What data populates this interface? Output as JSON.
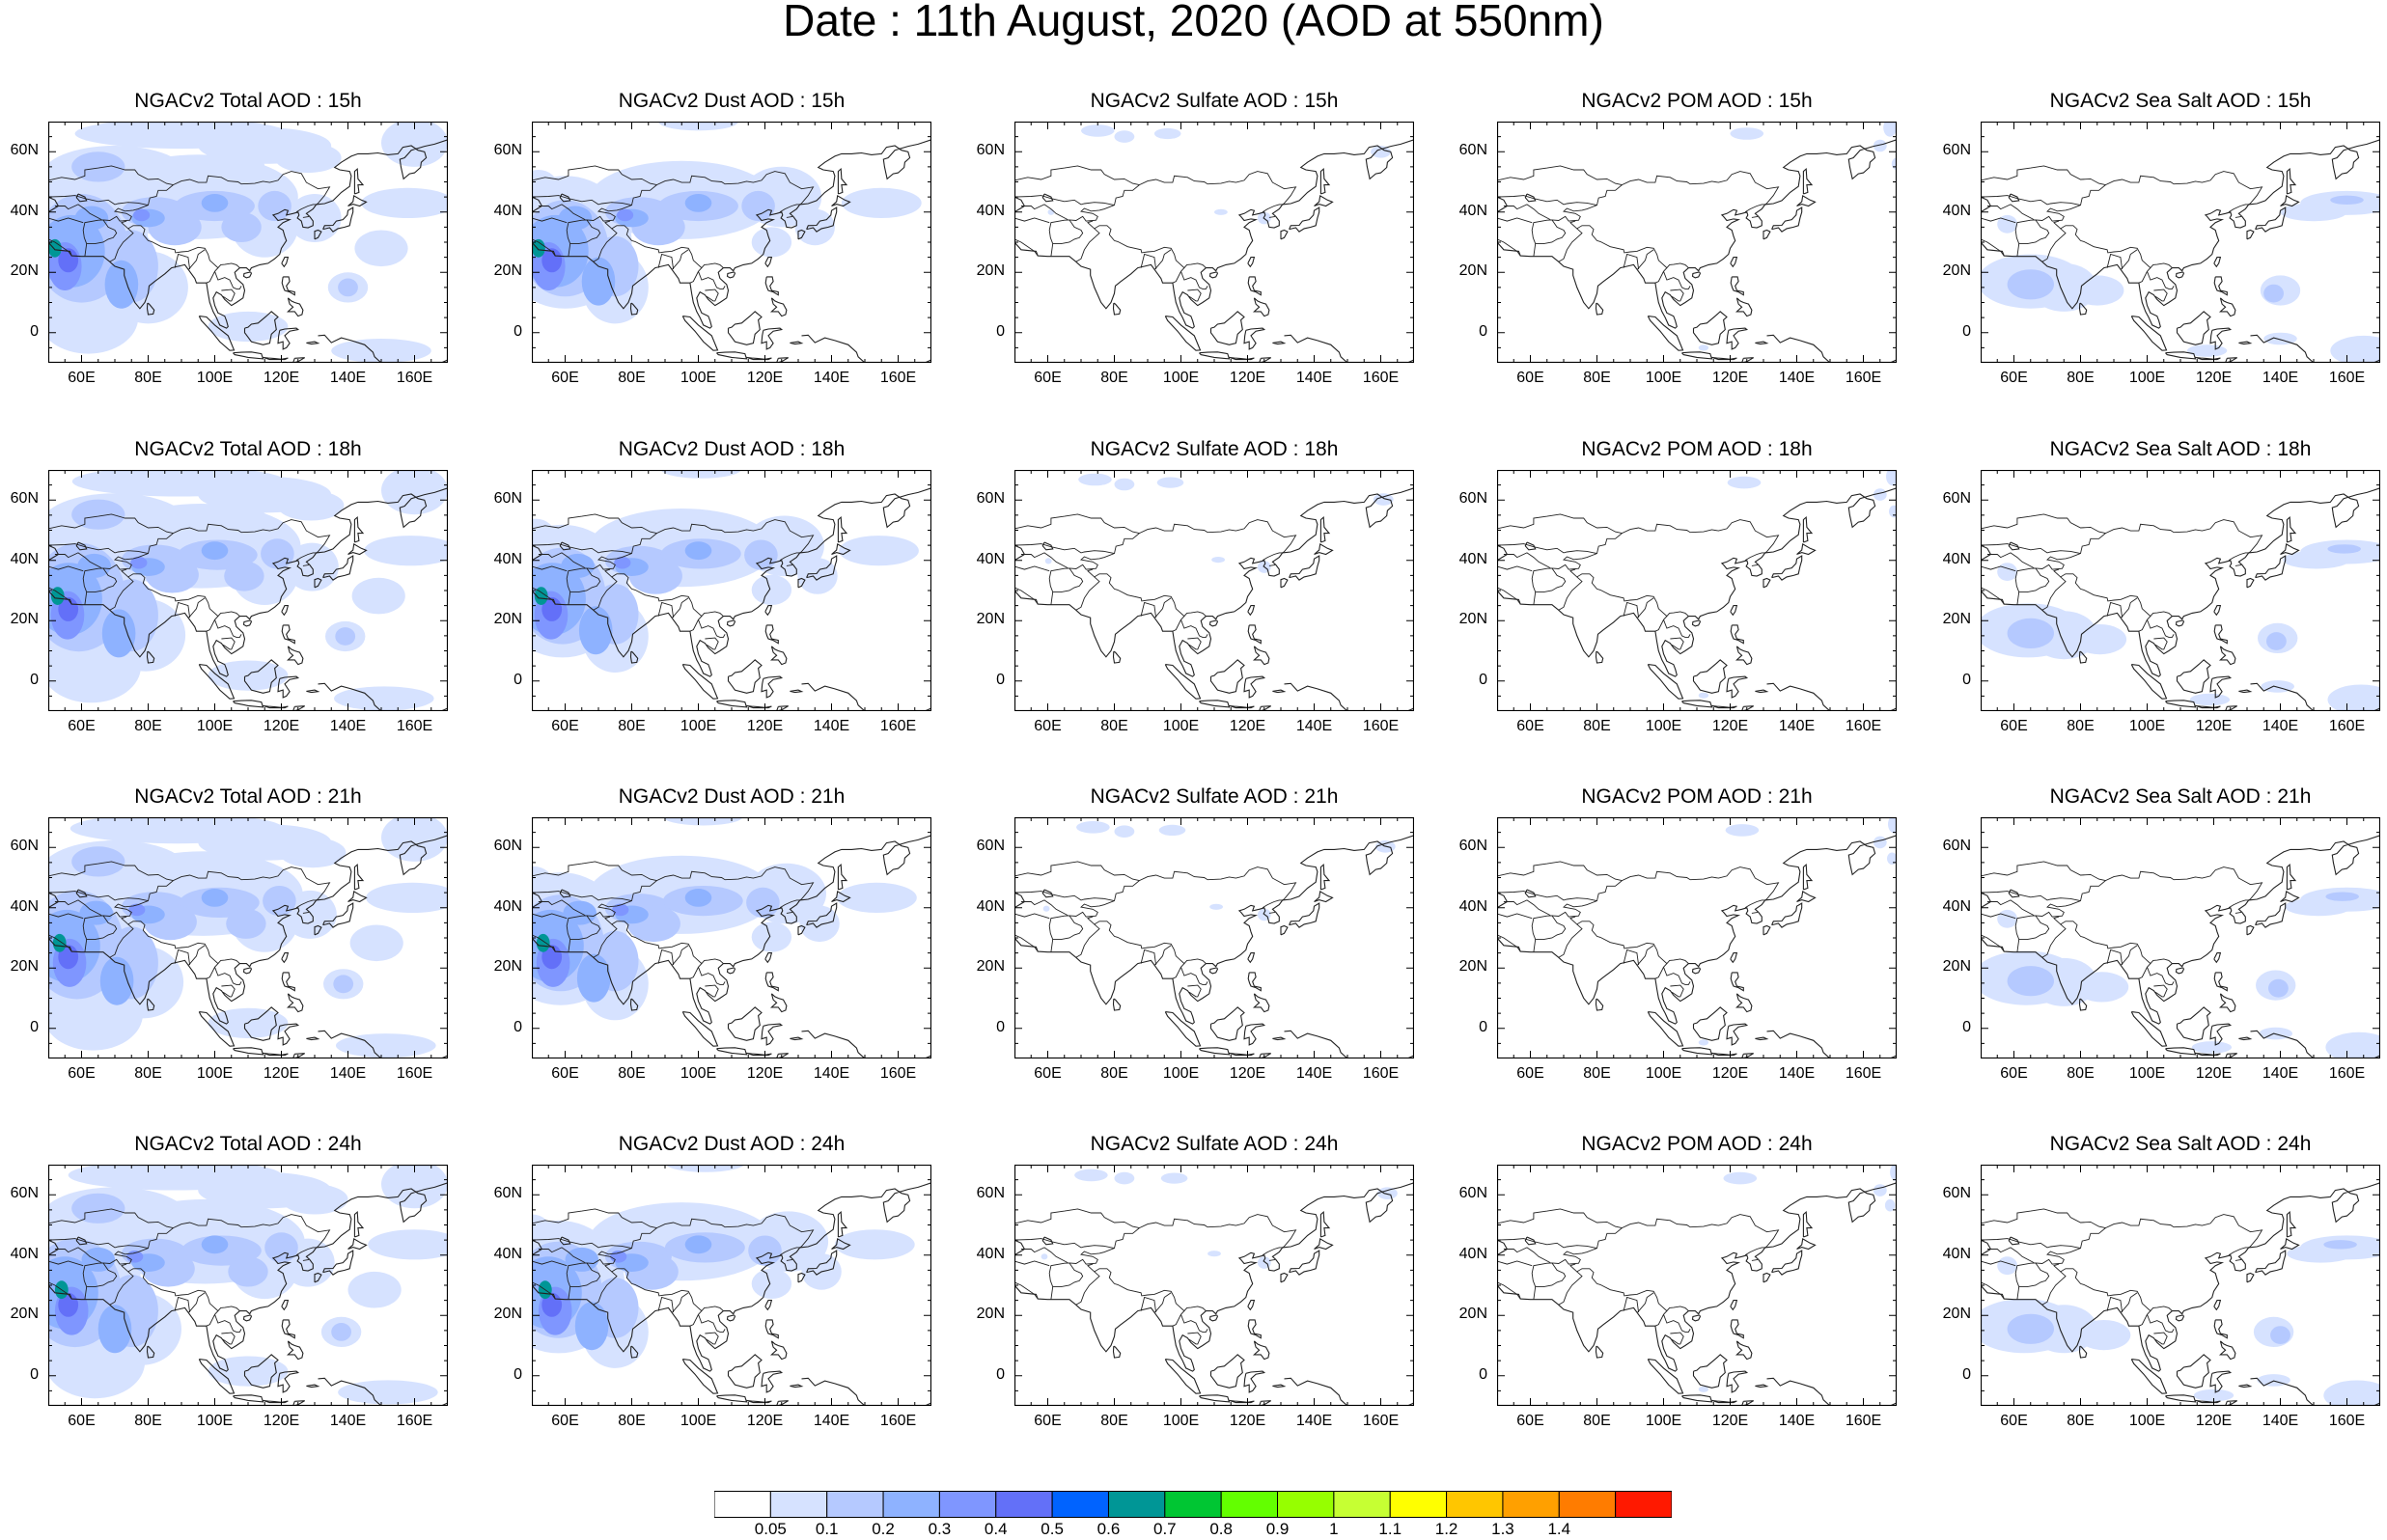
{
  "title": "Date : 11th August, 2020 (AOD at 550nm)",
  "lon_ticks": [
    "60E",
    "80E",
    "100E",
    "120E",
    "140E",
    "160E"
  ],
  "lat_ticks": [
    "60N",
    "40N",
    "20N",
    "0"
  ],
  "panels": [
    [
      "NGACv2 Total AOD : 15h",
      "NGACv2 Dust AOD : 15h",
      "NGACv2 Sulfate AOD : 15h",
      "NGACv2 POM AOD : 15h",
      "NGACv2 Sea Salt AOD : 15h"
    ],
    [
      "NGACv2 Total AOD : 18h",
      "NGACv2 Dust AOD : 18h",
      "NGACv2 Sulfate AOD : 18h",
      "NGACv2 POM AOD : 18h",
      "NGACv2 Sea Salt AOD : 18h"
    ],
    [
      "NGACv2 Total AOD : 21h",
      "NGACv2 Dust AOD : 21h",
      "NGACv2 Sulfate AOD : 21h",
      "NGACv2 POM AOD : 21h",
      "NGACv2 Sea Salt AOD : 21h"
    ],
    [
      "NGACv2 Total AOD : 24h",
      "NGACv2 Dust AOD : 24h",
      "NGACv2 Sulfate AOD : 24h",
      "NGACv2 POM AOD : 24h",
      "NGACv2 Sea Salt  AOD : 24h"
    ]
  ],
  "colorbar": {
    "labels": [
      "0.05",
      "0.1",
      "0.2",
      "0.3",
      "0.4",
      "0.5",
      "0.6",
      "0.7",
      "0.8",
      "0.9",
      "1",
      "1.1",
      "1.2",
      "1.3",
      "1.4"
    ],
    "colors": [
      "#ffffff",
      "#d6e2ff",
      "#b5c9ff",
      "#8eb2ff",
      "#7f96ff",
      "#6370f8",
      "#0063ff",
      "#009696",
      "#00c633",
      "#63ff00",
      "#96ff00",
      "#c6ff33",
      "#ffff00",
      "#ffc600",
      "#ffa000",
      "#ff7c00",
      "#ff1900"
    ]
  },
  "map_extent": {
    "lon": [
      50,
      170
    ],
    "lat": [
      -10,
      70
    ]
  }
}
